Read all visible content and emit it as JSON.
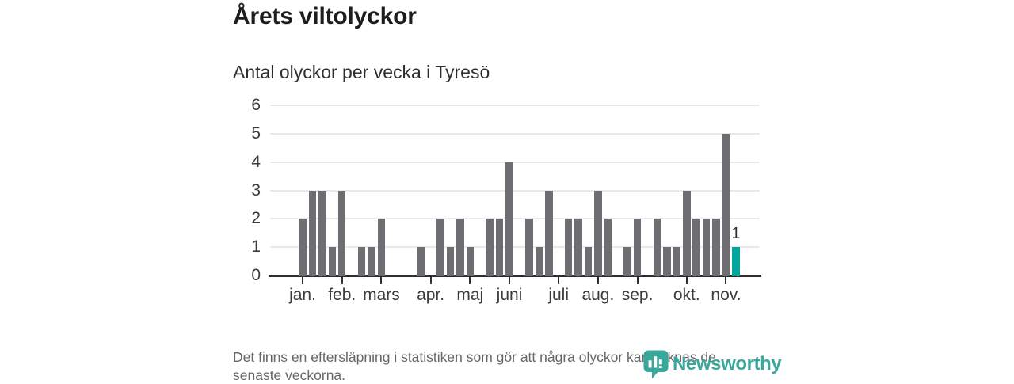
{
  "page": {
    "title": "Årets viltolyckor",
    "subtitle": "Antal olyckor per vecka i Tyresö",
    "footer": {
      "line1": "Det finns en eftersläpning i statistiken som gör att några olyckor kan saknas de",
      "line2": "senaste veckorna."
    },
    "brand": {
      "name": "Newsworthy",
      "icon": "newsworthy-speech-bubble-bar-chart-icon"
    }
  },
  "chart_data": {
    "type": "bar",
    "title": "Årets viltolyckor",
    "subtitle": "Antal olyckor per vecka i Tyresö",
    "x_unit": "vecka (week), jan–nov",
    "values": [
      2,
      3,
      3,
      1,
      3,
      0,
      1,
      1,
      2,
      0,
      0,
      0,
      1,
      0,
      2,
      1,
      2,
      1,
      0,
      2,
      2,
      4,
      0,
      2,
      1,
      3,
      0,
      2,
      2,
      1,
      3,
      2,
      0,
      1,
      2,
      0,
      2,
      1,
      1,
      3,
      2,
      2,
      2,
      5,
      1
    ],
    "month_ticks": [
      {
        "label": "jan.",
        "week": 1
      },
      {
        "label": "feb.",
        "week": 5
      },
      {
        "label": "mars",
        "week": 9
      },
      {
        "label": "apr.",
        "week": 14
      },
      {
        "label": "maj",
        "week": 18
      },
      {
        "label": "juni",
        "week": 22
      },
      {
        "label": "juli",
        "week": 27
      },
      {
        "label": "aug.",
        "week": 31
      },
      {
        "label": "sep.",
        "week": 35
      },
      {
        "label": "okt.",
        "week": 40
      },
      {
        "label": "nov.",
        "week": 44
      }
    ],
    "y_ticks": [
      0,
      1,
      2,
      3,
      4,
      5,
      6
    ],
    "ylim": [
      0,
      6
    ],
    "grid": true,
    "legend": false,
    "highlight_last_bar": true,
    "last_value_label": "1",
    "colors": {
      "bar": "#6e6d71",
      "highlight": "#00a59b",
      "grid": "#e9e9e9",
      "axis": "#2d2d2d",
      "brand": "#3aa79b"
    }
  }
}
